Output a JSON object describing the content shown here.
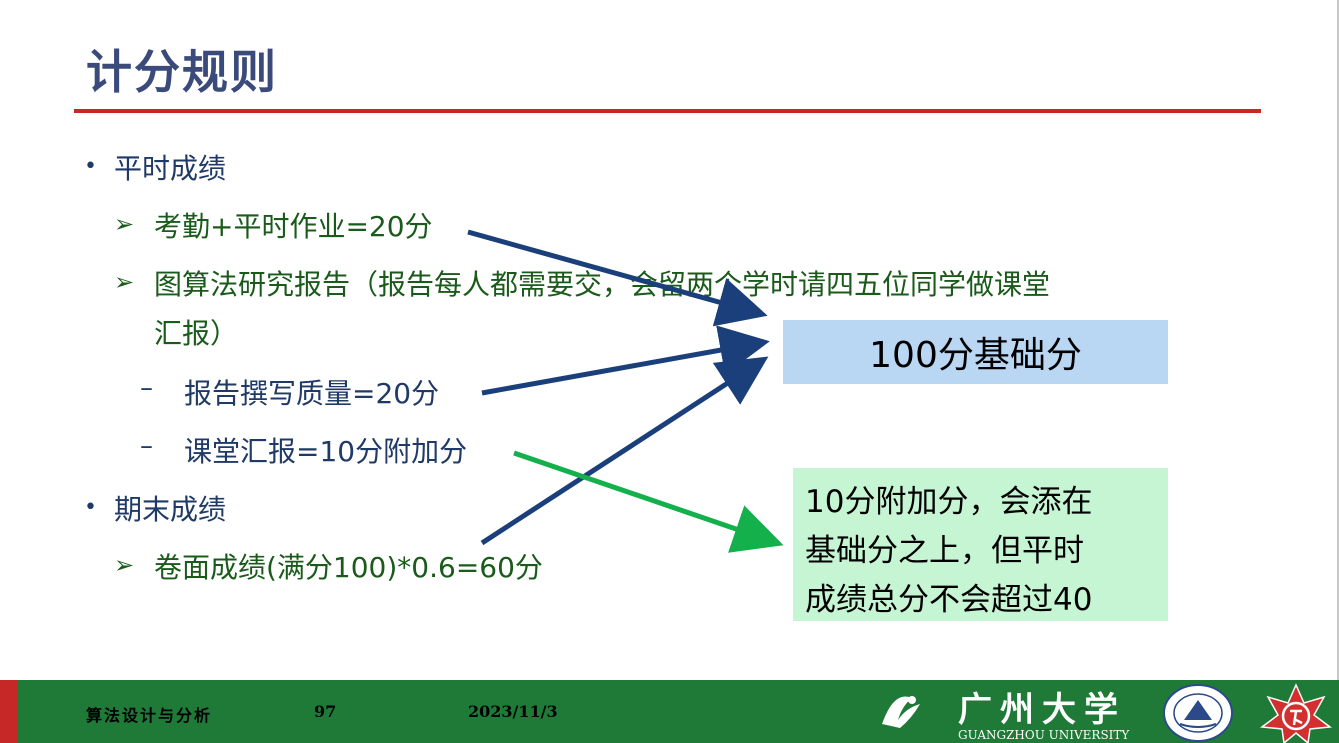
{
  "slide": {
    "title": "计分规则",
    "items": {
      "regular": "平时成绩",
      "attendance": "考勤+平时作业=20分",
      "report_line1": "图算法研究报告（报告每人都需要交，会留两个学时请四五位同学做课堂",
      "report_line2": "汇报）",
      "report_quality": "报告撰写质量=20分",
      "presentation": "课堂汇报=10分附加分",
      "final": "期末成绩",
      "exam": "卷面成绩(满分100)*0.6=60分"
    },
    "markers": {
      "bullet": "•",
      "arrow": "➢",
      "dash": "–"
    },
    "boxes": {
      "base": "100分基础分",
      "bonus_line1": "10分附加分，会添在",
      "bonus_line2": "基础分之上，但平时",
      "bonus_line3": "成绩总分不会超过40"
    }
  },
  "footer": {
    "course": "算法设计与分析",
    "page": "97",
    "date": "2023/11/3",
    "university_cn": "广州大学",
    "university_en": "GUANGZHOU UNIVERSITY"
  },
  "colors": {
    "title": "#3a4a7a",
    "rule": "#c62828",
    "green_text": "#1a5a1a",
    "navy_text": "#1f3a66",
    "arrow_navy": "#1a3f7a",
    "arrow_green": "#13b04b",
    "box_blue": "#b9d6f3",
    "box_green": "#c6f5d4",
    "footer": "#1e7a36"
  }
}
